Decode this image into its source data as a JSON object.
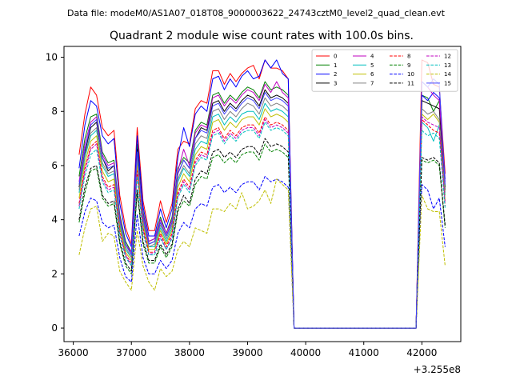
{
  "chart_data": {
    "type": "line",
    "suptitle": "Data file: modeM0/AS1A07_018T08_9000003622_24743cztM0_level2_quad_clean.evt",
    "title": "Quadrant 2 module wise count rates with 100.0s bins.",
    "xlabel": "",
    "ylabel": "",
    "x_offset_label": "+3.255e8",
    "xlim": [
      35840,
      42670
    ],
    "ylim": [
      -0.5,
      10.4
    ],
    "xticks": [
      36000,
      37000,
      38000,
      39000,
      40000,
      41000,
      42000
    ],
    "xtick_labels": [
      "36000",
      "37000",
      "38000",
      "39000",
      "40000",
      "41000",
      "42000"
    ],
    "yticks": [
      0,
      2,
      4,
      6,
      8,
      10
    ],
    "ytick_labels": [
      "0",
      "2",
      "4",
      "6",
      "8",
      "10"
    ],
    "grid": false,
    "legend": {
      "placement": "top-right",
      "columns": 4
    },
    "x": [
      36100,
      36200,
      36300,
      36400,
      36500,
      36600,
      36700,
      36800,
      36900,
      37000,
      37100,
      37200,
      37300,
      37400,
      37500,
      37600,
      37700,
      37800,
      37900,
      38000,
      38100,
      38200,
      38300,
      38400,
      38500,
      38600,
      38700,
      38800,
      38900,
      39000,
      39100,
      39200,
      39300,
      39400,
      39500,
      39600,
      39700,
      39800,
      39900,
      40000,
      40100,
      40200,
      40300,
      40400,
      40500,
      40600,
      40700,
      40800,
      40900,
      41000,
      41100,
      41200,
      41300,
      41400,
      41500,
      41600,
      41700,
      41800,
      41900,
      42000,
      42100,
      42200,
      42300,
      42400
    ],
    "series": [
      {
        "name": "0",
        "color": "#ff0000",
        "dash": "solid",
        "values": [
          6.4,
          7.9,
          8.9,
          8.6,
          7.4,
          7.1,
          7.3,
          4.9,
          3.7,
          3.1,
          7.4,
          4.7,
          3.6,
          3.6,
          4.7,
          3.9,
          4.6,
          6.6,
          6.9,
          6.8,
          8.1,
          8.4,
          8.3,
          9.5,
          9.5,
          9.0,
          9.4,
          9.1,
          9.4,
          9.6,
          9.7,
          9.2,
          9.9,
          9.6,
          9.6,
          9.5,
          9.2,
          0.0,
          0.0,
          0.0,
          0.0,
          0.0,
          0.0,
          0.0,
          0.0,
          0.0,
          0.0,
          0.0,
          0.0,
          0.0,
          0.0,
          0.0,
          0.0,
          0.0,
          0.0,
          0.0,
          0.0,
          0.0,
          0.0,
          9.9,
          9.8,
          9.0,
          8.9,
          5.7
        ]
      },
      {
        "name": "1",
        "color": "#008000",
        "dash": "solid",
        "values": [
          5.6,
          7.0,
          7.8,
          7.9,
          6.5,
          6.1,
          6.2,
          4.2,
          3.2,
          2.8,
          6.8,
          4.3,
          3.2,
          3.3,
          4.1,
          3.5,
          4.1,
          5.9,
          6.3,
          6.1,
          7.3,
          7.6,
          7.5,
          8.6,
          8.7,
          8.3,
          8.6,
          8.4,
          8.7,
          8.9,
          8.8,
          8.5,
          9.1,
          8.8,
          8.9,
          8.8,
          8.6,
          0.0,
          0.0,
          0.0,
          0.0,
          0.0,
          0.0,
          0.0,
          0.0,
          0.0,
          0.0,
          0.0,
          0.0,
          0.0,
          0.0,
          0.0,
          0.0,
          0.0,
          0.0,
          0.0,
          0.0,
          0.0,
          0.0,
          8.6,
          8.5,
          8.0,
          8.4,
          5.2
        ]
      },
      {
        "name": "2",
        "color": "#0000ff",
        "dash": "solid",
        "values": [
          5.9,
          7.5,
          8.4,
          8.2,
          7.1,
          6.8,
          7.0,
          4.6,
          3.5,
          3.0,
          7.1,
          4.5,
          3.4,
          3.4,
          4.4,
          3.7,
          4.4,
          6.3,
          7.4,
          6.7,
          7.9,
          8.2,
          8.0,
          9.2,
          9.3,
          8.8,
          9.2,
          8.9,
          9.3,
          9.5,
          9.2,
          9.3,
          9.9,
          9.6,
          9.9,
          9.4,
          9.2,
          0.0,
          0.0,
          0.0,
          0.0,
          0.0,
          0.0,
          0.0,
          0.0,
          0.0,
          0.0,
          0.0,
          0.0,
          0.0,
          0.0,
          0.0,
          0.0,
          0.0,
          0.0,
          0.0,
          0.0,
          0.0,
          0.0,
          8.6,
          8.4,
          8.7,
          8.5,
          5.5
        ]
      },
      {
        "name": "3",
        "color": "#000000",
        "dash": "solid",
        "values": [
          5.2,
          6.5,
          7.4,
          7.6,
          6.3,
          5.8,
          6.0,
          4.0,
          3.1,
          2.7,
          6.6,
          4.2,
          3.1,
          3.2,
          3.9,
          3.4,
          3.9,
          5.7,
          6.2,
          5.9,
          7.0,
          7.4,
          7.3,
          8.3,
          8.4,
          8.0,
          8.3,
          8.1,
          8.4,
          8.6,
          8.5,
          8.2,
          8.8,
          8.5,
          8.6,
          8.5,
          8.3,
          0.0,
          0.0,
          0.0,
          0.0,
          0.0,
          0.0,
          0.0,
          0.0,
          0.0,
          0.0,
          0.0,
          0.0,
          0.0,
          0.0,
          0.0,
          0.0,
          0.0,
          0.0,
          0.0,
          0.0,
          0.0,
          0.0,
          8.4,
          8.3,
          8.2,
          8.1,
          5.1
        ]
      },
      {
        "name": "4",
        "color": "#bf00bf",
        "dash": "solid",
        "values": [
          5.4,
          6.8,
          7.6,
          7.8,
          6.4,
          6.0,
          6.1,
          4.1,
          3.1,
          2.8,
          6.5,
          4.2,
          3.2,
          3.3,
          4.0,
          3.5,
          4.0,
          5.8,
          6.6,
          6.0,
          7.2,
          7.5,
          7.4,
          8.5,
          8.6,
          8.2,
          8.5,
          8.3,
          8.6,
          8.8,
          8.7,
          8.4,
          9.0,
          8.7,
          9.1,
          8.7,
          8.5,
          0.0,
          0.0,
          0.0,
          0.0,
          0.0,
          0.0,
          0.0,
          0.0,
          0.0,
          0.0,
          0.0,
          0.0,
          0.0,
          0.0,
          0.0,
          0.0,
          0.0,
          0.0,
          0.0,
          0.0,
          0.0,
          0.0,
          9.1,
          8.9,
          8.6,
          8.4,
          5.4
        ]
      },
      {
        "name": "5",
        "color": "#00bfbf",
        "dash": "solid",
        "values": [
          5.0,
          6.3,
          7.1,
          7.3,
          6.0,
          5.6,
          5.7,
          3.8,
          2.9,
          2.6,
          6.2,
          3.9,
          3.0,
          3.0,
          3.7,
          3.2,
          3.7,
          5.4,
          5.9,
          5.6,
          6.6,
          6.9,
          6.8,
          7.8,
          7.9,
          7.5,
          7.8,
          7.6,
          7.9,
          8.0,
          8.0,
          7.7,
          8.3,
          8.0,
          8.1,
          8.0,
          7.8,
          0.0,
          0.0,
          0.0,
          0.0,
          0.0,
          0.0,
          0.0,
          0.0,
          0.0,
          0.0,
          0.0,
          0.0,
          0.0,
          0.0,
          0.0,
          0.0,
          0.0,
          0.0,
          0.0,
          0.0,
          0.0,
          0.0,
          7.6,
          7.4,
          6.9,
          7.5,
          4.9
        ]
      },
      {
        "name": "6",
        "color": "#bfbf00",
        "dash": "solid",
        "values": [
          4.8,
          6.1,
          6.9,
          7.1,
          5.8,
          5.4,
          5.5,
          3.7,
          2.8,
          2.5,
          6.0,
          3.8,
          2.9,
          2.9,
          3.6,
          3.1,
          3.6,
          5.2,
          5.7,
          5.4,
          6.4,
          6.7,
          6.6,
          7.6,
          7.7,
          7.3,
          7.6,
          7.4,
          7.7,
          7.8,
          7.8,
          7.5,
          8.1,
          7.8,
          7.9,
          7.8,
          7.6,
          0.0,
          0.0,
          0.0,
          0.0,
          0.0,
          0.0,
          0.0,
          0.0,
          0.0,
          0.0,
          0.0,
          0.0,
          0.0,
          0.0,
          0.0,
          0.0,
          0.0,
          0.0,
          0.0,
          0.0,
          0.0,
          0.0,
          7.9,
          7.7,
          7.9,
          7.6,
          4.7
        ]
      },
      {
        "name": "7",
        "color": "#808080",
        "dash": "solid",
        "values": [
          5.1,
          6.4,
          7.2,
          7.4,
          6.1,
          5.7,
          5.8,
          3.9,
          3.0,
          2.6,
          6.3,
          4.0,
          3.0,
          3.1,
          3.8,
          3.3,
          3.8,
          5.5,
          6.0,
          5.7,
          6.8,
          7.1,
          7.0,
          8.0,
          8.1,
          7.7,
          8.0,
          7.8,
          8.1,
          8.3,
          8.2,
          7.9,
          8.5,
          8.2,
          8.3,
          8.2,
          8.0,
          0.0,
          0.0,
          0.0,
          0.0,
          0.0,
          0.0,
          0.0,
          0.0,
          0.0,
          0.0,
          0.0,
          0.0,
          0.0,
          0.0,
          0.0,
          0.0,
          0.0,
          0.0,
          0.0,
          0.0,
          0.0,
          0.0,
          8.1,
          7.9,
          8.0,
          7.7,
          5.0
        ]
      },
      {
        "name": "8",
        "color": "#ff0000",
        "dash": "dashed",
        "values": [
          4.6,
          5.9,
          6.7,
          6.9,
          5.6,
          5.2,
          5.3,
          3.6,
          2.7,
          2.4,
          5.8,
          3.7,
          2.8,
          2.8,
          3.5,
          3.0,
          3.5,
          5.0,
          5.5,
          5.2,
          6.2,
          6.5,
          6.4,
          7.3,
          7.4,
          7.0,
          7.3,
          7.1,
          7.4,
          7.5,
          7.5,
          7.2,
          7.8,
          7.5,
          7.6,
          7.5,
          7.3,
          0.0,
          0.0,
          0.0,
          0.0,
          0.0,
          0.0,
          0.0,
          0.0,
          0.0,
          0.0,
          0.0,
          0.0,
          0.0,
          0.0,
          0.0,
          0.0,
          0.0,
          0.0,
          0.0,
          0.0,
          0.0,
          0.0,
          7.7,
          7.5,
          7.3,
          7.2,
          4.5
        ]
      },
      {
        "name": "9",
        "color": "#008000",
        "dash": "dashed",
        "values": [
          3.9,
          5.0,
          5.8,
          5.9,
          4.8,
          4.5,
          4.6,
          3.1,
          2.3,
          2.0,
          5.0,
          3.1,
          2.4,
          2.4,
          3.0,
          2.6,
          3.0,
          4.3,
          4.7,
          4.5,
          5.3,
          5.6,
          5.5,
          6.3,
          6.4,
          6.1,
          6.3,
          6.1,
          6.4,
          6.5,
          6.5,
          6.2,
          6.8,
          6.5,
          6.6,
          6.5,
          6.3,
          0.0,
          0.0,
          0.0,
          0.0,
          0.0,
          0.0,
          0.0,
          0.0,
          0.0,
          0.0,
          0.0,
          0.0,
          0.0,
          0.0,
          0.0,
          0.0,
          0.0,
          0.0,
          0.0,
          0.0,
          0.0,
          0.0,
          6.2,
          6.1,
          6.2,
          6.0,
          3.7
        ]
      },
      {
        "name": "10",
        "color": "#0000ff",
        "dash": "dashed",
        "values": [
          3.4,
          4.3,
          4.8,
          4.7,
          3.9,
          3.7,
          3.8,
          2.6,
          1.9,
          1.7,
          4.2,
          2.6,
          2.0,
          2.0,
          2.5,
          2.2,
          2.5,
          3.5,
          3.9,
          3.7,
          4.4,
          4.6,
          4.5,
          5.2,
          5.3,
          5.0,
          5.2,
          5.0,
          5.3,
          5.4,
          5.4,
          5.1,
          5.6,
          5.4,
          5.5,
          5.4,
          5.2,
          0.0,
          0.0,
          0.0,
          0.0,
          0.0,
          0.0,
          0.0,
          0.0,
          0.0,
          0.0,
          0.0,
          0.0,
          0.0,
          0.0,
          0.0,
          0.0,
          0.0,
          0.0,
          0.0,
          0.0,
          0.0,
          0.0,
          5.3,
          5.1,
          4.4,
          4.8,
          3.0
        ]
      },
      {
        "name": "11",
        "color": "#000000",
        "dash": "dashed",
        "values": [
          4.0,
          5.2,
          5.9,
          6.0,
          4.9,
          4.6,
          4.7,
          3.2,
          2.4,
          2.1,
          5.1,
          3.2,
          2.5,
          2.5,
          3.1,
          2.7,
          3.1,
          4.4,
          4.9,
          4.6,
          5.5,
          5.8,
          5.7,
          6.5,
          6.6,
          6.3,
          6.5,
          6.3,
          6.6,
          6.7,
          6.7,
          6.4,
          7.0,
          6.7,
          6.8,
          6.7,
          6.5,
          0.0,
          0.0,
          0.0,
          0.0,
          0.0,
          0.0,
          0.0,
          0.0,
          0.0,
          0.0,
          0.0,
          0.0,
          0.0,
          0.0,
          0.0,
          0.0,
          0.0,
          0.0,
          0.0,
          0.0,
          0.0,
          0.0,
          6.3,
          6.2,
          6.3,
          6.1,
          3.8
        ]
      },
      {
        "name": "12",
        "color": "#bf00bf",
        "dash": "dashed",
        "values": [
          4.5,
          5.8,
          6.6,
          6.8,
          5.5,
          5.1,
          5.2,
          3.5,
          2.7,
          2.3,
          5.7,
          3.6,
          2.7,
          2.8,
          3.4,
          2.9,
          3.4,
          4.9,
          5.4,
          5.1,
          6.1,
          6.4,
          6.3,
          7.2,
          7.3,
          6.9,
          7.2,
          7.0,
          7.3,
          7.4,
          7.4,
          7.1,
          7.7,
          7.4,
          7.5,
          7.4,
          7.2,
          0.0,
          0.0,
          0.0,
          0.0,
          0.0,
          0.0,
          0.0,
          0.0,
          0.0,
          0.0,
          0.0,
          0.0,
          0.0,
          0.0,
          0.0,
          0.0,
          0.0,
          0.0,
          0.0,
          0.0,
          0.0,
          0.0,
          7.8,
          7.6,
          7.5,
          7.4,
          4.6
        ]
      },
      {
        "name": "13",
        "color": "#00bfbf",
        "dash": "dashed",
        "values": [
          4.4,
          5.6,
          6.4,
          6.6,
          5.4,
          5.0,
          5.1,
          3.4,
          2.6,
          2.3,
          5.6,
          3.5,
          2.7,
          2.7,
          3.3,
          2.9,
          3.3,
          4.8,
          5.3,
          5.0,
          6.0,
          6.3,
          6.2,
          7.1,
          7.2,
          6.8,
          7.1,
          6.9,
          7.2,
          7.3,
          7.3,
          7.0,
          7.6,
          7.3,
          7.4,
          7.3,
          7.1,
          0.0,
          0.0,
          0.0,
          0.0,
          0.0,
          0.0,
          0.0,
          0.0,
          0.0,
          0.0,
          0.0,
          0.0,
          0.0,
          0.0,
          0.0,
          0.0,
          0.0,
          0.0,
          0.0,
          0.0,
          0.0,
          0.0,
          7.3,
          7.1,
          7.2,
          7.0,
          4.4
        ]
      },
      {
        "name": "14",
        "color": "#bfbf00",
        "dash": "dashed",
        "values": [
          2.7,
          3.7,
          4.4,
          4.5,
          3.2,
          3.5,
          3.4,
          2.1,
          1.7,
          1.4,
          3.6,
          2.3,
          1.7,
          1.4,
          2.2,
          1.9,
          2.1,
          2.9,
          3.2,
          3.0,
          3.7,
          3.6,
          3.5,
          4.4,
          4.4,
          4.3,
          4.6,
          4.4,
          5.0,
          4.4,
          4.5,
          4.7,
          5.1,
          4.6,
          5.5,
          5.3,
          5.1,
          0.0,
          0.0,
          0.0,
          0.0,
          0.0,
          0.0,
          0.0,
          0.0,
          0.0,
          0.0,
          0.0,
          0.0,
          0.0,
          0.0,
          0.0,
          0.0,
          0.0,
          0.0,
          0.0,
          0.0,
          0.0,
          0.0,
          4.9,
          4.4,
          4.3,
          4.3,
          2.3
        ]
      },
      {
        "name": "15",
        "color": "#4040ff",
        "dash": "solid",
        "values": [
          5.3,
          6.6,
          7.5,
          7.7,
          6.3,
          5.9,
          6.0,
          4.0,
          3.1,
          2.7,
          6.5,
          4.1,
          3.1,
          3.2,
          3.9,
          3.4,
          3.9,
          5.7,
          6.2,
          5.9,
          7.0,
          7.3,
          7.2,
          8.2,
          8.3,
          7.9,
          8.2,
          8.0,
          8.3,
          8.5,
          8.4,
          8.1,
          8.7,
          8.4,
          8.5,
          8.4,
          8.2,
          0.0,
          0.0,
          0.0,
          0.0,
          0.0,
          0.0,
          0.0,
          0.0,
          0.0,
          0.0,
          0.0,
          0.0,
          0.0,
          0.0,
          0.0,
          0.0,
          0.0,
          0.0,
          0.0,
          0.0,
          0.0,
          0.0,
          9.1,
          8.9,
          9.2,
          9.0,
          5.3
        ]
      }
    ]
  }
}
